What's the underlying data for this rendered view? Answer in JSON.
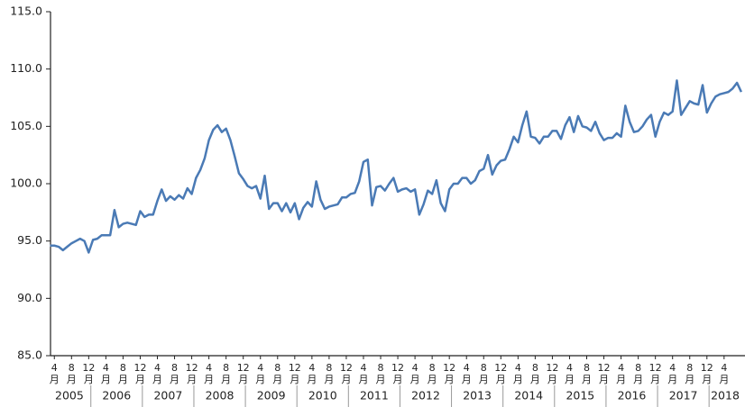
{
  "chart_data": {
    "type": "line",
    "x": [
      "2005-03",
      "2005-04",
      "2005-05",
      "2005-06",
      "2005-07",
      "2005-08",
      "2005-09",
      "2005-10",
      "2005-11",
      "2005-12",
      "2006-01",
      "2006-02",
      "2006-03",
      "2006-04",
      "2006-05",
      "2006-06",
      "2006-07",
      "2006-08",
      "2006-09",
      "2006-10",
      "2006-11",
      "2006-12",
      "2007-01",
      "2007-02",
      "2007-03",
      "2007-04",
      "2007-05",
      "2007-06",
      "2007-07",
      "2007-08",
      "2007-09",
      "2007-10",
      "2007-11",
      "2007-12",
      "2008-01",
      "2008-02",
      "2008-03",
      "2008-04",
      "2008-05",
      "2008-06",
      "2008-07",
      "2008-08",
      "2008-09",
      "2008-10",
      "2008-11",
      "2008-12",
      "2009-01",
      "2009-02",
      "2009-03",
      "2009-04",
      "2009-05",
      "2009-06",
      "2009-07",
      "2009-08",
      "2009-09",
      "2009-10",
      "2009-11",
      "2009-12",
      "2010-01",
      "2010-02",
      "2010-03",
      "2010-04",
      "2010-05",
      "2010-06",
      "2010-07",
      "2010-08",
      "2010-09",
      "2010-10",
      "2010-11",
      "2010-12",
      "2011-01",
      "2011-02",
      "2011-03",
      "2011-04",
      "2011-05",
      "2011-06",
      "2011-07",
      "2011-08",
      "2011-09",
      "2011-10",
      "2011-11",
      "2011-12",
      "2012-01",
      "2012-02",
      "2012-03",
      "2012-04",
      "2012-05",
      "2012-06",
      "2012-07",
      "2012-08",
      "2012-09",
      "2012-10",
      "2012-11",
      "2012-12",
      "2013-01",
      "2013-02",
      "2013-03",
      "2013-04",
      "2013-05",
      "2013-06",
      "2013-07",
      "2013-08",
      "2013-09",
      "2013-10",
      "2013-11",
      "2013-12",
      "2014-01",
      "2014-02",
      "2014-03",
      "2014-04",
      "2014-05",
      "2014-06",
      "2014-07",
      "2014-08",
      "2014-09",
      "2014-10",
      "2014-11",
      "2014-12",
      "2015-01",
      "2015-02",
      "2015-03",
      "2015-04",
      "2015-05",
      "2015-06",
      "2015-07",
      "2015-08",
      "2015-09",
      "2015-10",
      "2015-11",
      "2015-12",
      "2016-01",
      "2016-02",
      "2016-03",
      "2016-04",
      "2016-05",
      "2016-06",
      "2016-07",
      "2016-08",
      "2016-09",
      "2016-10",
      "2016-11",
      "2016-12",
      "2017-01",
      "2017-02",
      "2017-03",
      "2017-04",
      "2017-05",
      "2017-06",
      "2017-07",
      "2017-08",
      "2017-09",
      "2017-10",
      "2017-11",
      "2017-12",
      "2018-01",
      "2018-02",
      "2018-03",
      "2018-04",
      "2018-05",
      "2018-06",
      "2018-07",
      "2018-08"
    ],
    "series": [
      {
        "color": "#4a7ab5",
        "values": [
          94.6,
          94.6,
          94.5,
          94.2,
          94.5,
          94.8,
          95.0,
          95.2,
          95.0,
          94.0,
          95.1,
          95.2,
          95.5,
          95.5,
          95.5,
          97.7,
          96.2,
          96.5,
          96.6,
          96.5,
          96.4,
          97.6,
          97.1,
          97.3,
          97.3,
          98.5,
          99.5,
          98.5,
          98.9,
          98.6,
          99.0,
          98.7,
          99.6,
          99.1,
          100.5,
          101.2,
          102.2,
          103.8,
          104.7,
          105.1,
          104.5,
          104.8,
          103.8,
          102.4,
          100.9,
          100.4,
          99.8,
          99.6,
          99.8,
          98.7,
          100.7,
          97.8,
          98.3,
          98.3,
          97.6,
          98.3,
          97.5,
          98.3,
          96.9,
          97.9,
          98.4,
          98.0,
          100.2,
          98.6,
          97.8,
          98.0,
          98.1,
          98.2,
          98.8,
          98.8,
          99.1,
          99.2,
          100.2,
          101.9,
          102.1,
          98.1,
          99.7,
          99.8,
          99.4,
          100.0,
          100.5,
          99.3,
          99.5,
          99.6,
          99.3,
          99.5,
          97.3,
          98.2,
          99.4,
          99.1,
          100.3,
          98.3,
          97.6,
          99.5,
          100.0,
          100.0,
          100.5,
          100.5,
          100.0,
          100.3,
          101.1,
          101.3,
          102.5,
          100.8,
          101.6,
          102.0,
          102.1,
          103.0,
          104.1,
          103.6,
          105.1,
          106.3,
          104.1,
          104.0,
          103.5,
          104.1,
          104.1,
          104.6,
          104.6,
          103.9,
          105.1,
          105.8,
          104.5,
          105.9,
          105.0,
          104.9,
          104.6,
          105.4,
          104.4,
          103.8,
          104.0,
          104.0,
          104.4,
          104.1,
          106.8,
          105.4,
          104.5,
          104.6,
          105.0,
          105.6,
          106.0,
          104.1,
          105.4,
          106.2,
          106.0,
          106.3,
          109.0,
          106.0,
          106.6,
          107.2,
          107.0,
          106.9,
          108.6,
          106.2,
          107.0,
          107.6,
          107.8,
          107.9,
          108.0,
          108.3,
          108.8,
          108.0
        ]
      }
    ],
    "ylim": [
      85,
      115
    ],
    "yticks": [
      {
        "value": 85,
        "label": "85.0"
      },
      {
        "value": 90,
        "label": "90.0"
      },
      {
        "value": 95,
        "label": "95.0"
      },
      {
        "value": 100,
        "label": "100.0"
      },
      {
        "value": 105,
        "label": "105.0"
      },
      {
        "value": 110,
        "label": "110.0"
      },
      {
        "value": 115,
        "label": "115.0"
      }
    ],
    "xticks": [
      {
        "value": "2005-04",
        "label": "4"
      },
      {
        "value": "2005-08",
        "label": "8"
      },
      {
        "value": "2005-12",
        "label": "12"
      },
      {
        "value": "2006-04",
        "label": "4"
      },
      {
        "value": "2006-08",
        "label": "8"
      },
      {
        "value": "2006-12",
        "label": "12"
      },
      {
        "value": "2007-04",
        "label": "4"
      },
      {
        "value": "2007-08",
        "label": "8"
      },
      {
        "value": "2007-12",
        "label": "12"
      },
      {
        "value": "2008-04",
        "label": "4"
      },
      {
        "value": "2008-08",
        "label": "8"
      },
      {
        "value": "2008-12",
        "label": "12"
      },
      {
        "value": "2009-04",
        "label": "4"
      },
      {
        "value": "2009-08",
        "label": "8"
      },
      {
        "value": "2009-12",
        "label": "12"
      },
      {
        "value": "2010-04",
        "label": "4"
      },
      {
        "value": "2010-08",
        "label": "8"
      },
      {
        "value": "2010-12",
        "label": "12"
      },
      {
        "value": "2011-04",
        "label": "4"
      },
      {
        "value": "2011-08",
        "label": "8"
      },
      {
        "value": "2011-12",
        "label": "12"
      },
      {
        "value": "2012-04",
        "label": "4"
      },
      {
        "value": "2012-08",
        "label": "8"
      },
      {
        "value": "2012-12",
        "label": "12"
      },
      {
        "value": "2013-04",
        "label": "4"
      },
      {
        "value": "2013-08",
        "label": "8"
      },
      {
        "value": "2013-12",
        "label": "12"
      },
      {
        "value": "2014-04",
        "label": "4"
      },
      {
        "value": "2014-08",
        "label": "8"
      },
      {
        "value": "2014-12",
        "label": "12"
      },
      {
        "value": "2015-04",
        "label": "4"
      },
      {
        "value": "2015-08",
        "label": "8"
      },
      {
        "value": "2015-12",
        "label": "12"
      },
      {
        "value": "2016-04",
        "label": "4"
      },
      {
        "value": "2016-08",
        "label": "8"
      },
      {
        "value": "2016-12",
        "label": "12"
      },
      {
        "value": "2017-04",
        "label": "4"
      },
      {
        "value": "2017-08",
        "label": "8"
      },
      {
        "value": "2017-12",
        "label": "12"
      },
      {
        "value": "2018-04",
        "label": "4"
      }
    ],
    "month_unit": "月",
    "year_labels": [
      "2005",
      "2006",
      "2007",
      "2008",
      "2009",
      "2010",
      "2011",
      "2012",
      "2013",
      "2014",
      "2015",
      "2016",
      "2017",
      "2018"
    ]
  }
}
